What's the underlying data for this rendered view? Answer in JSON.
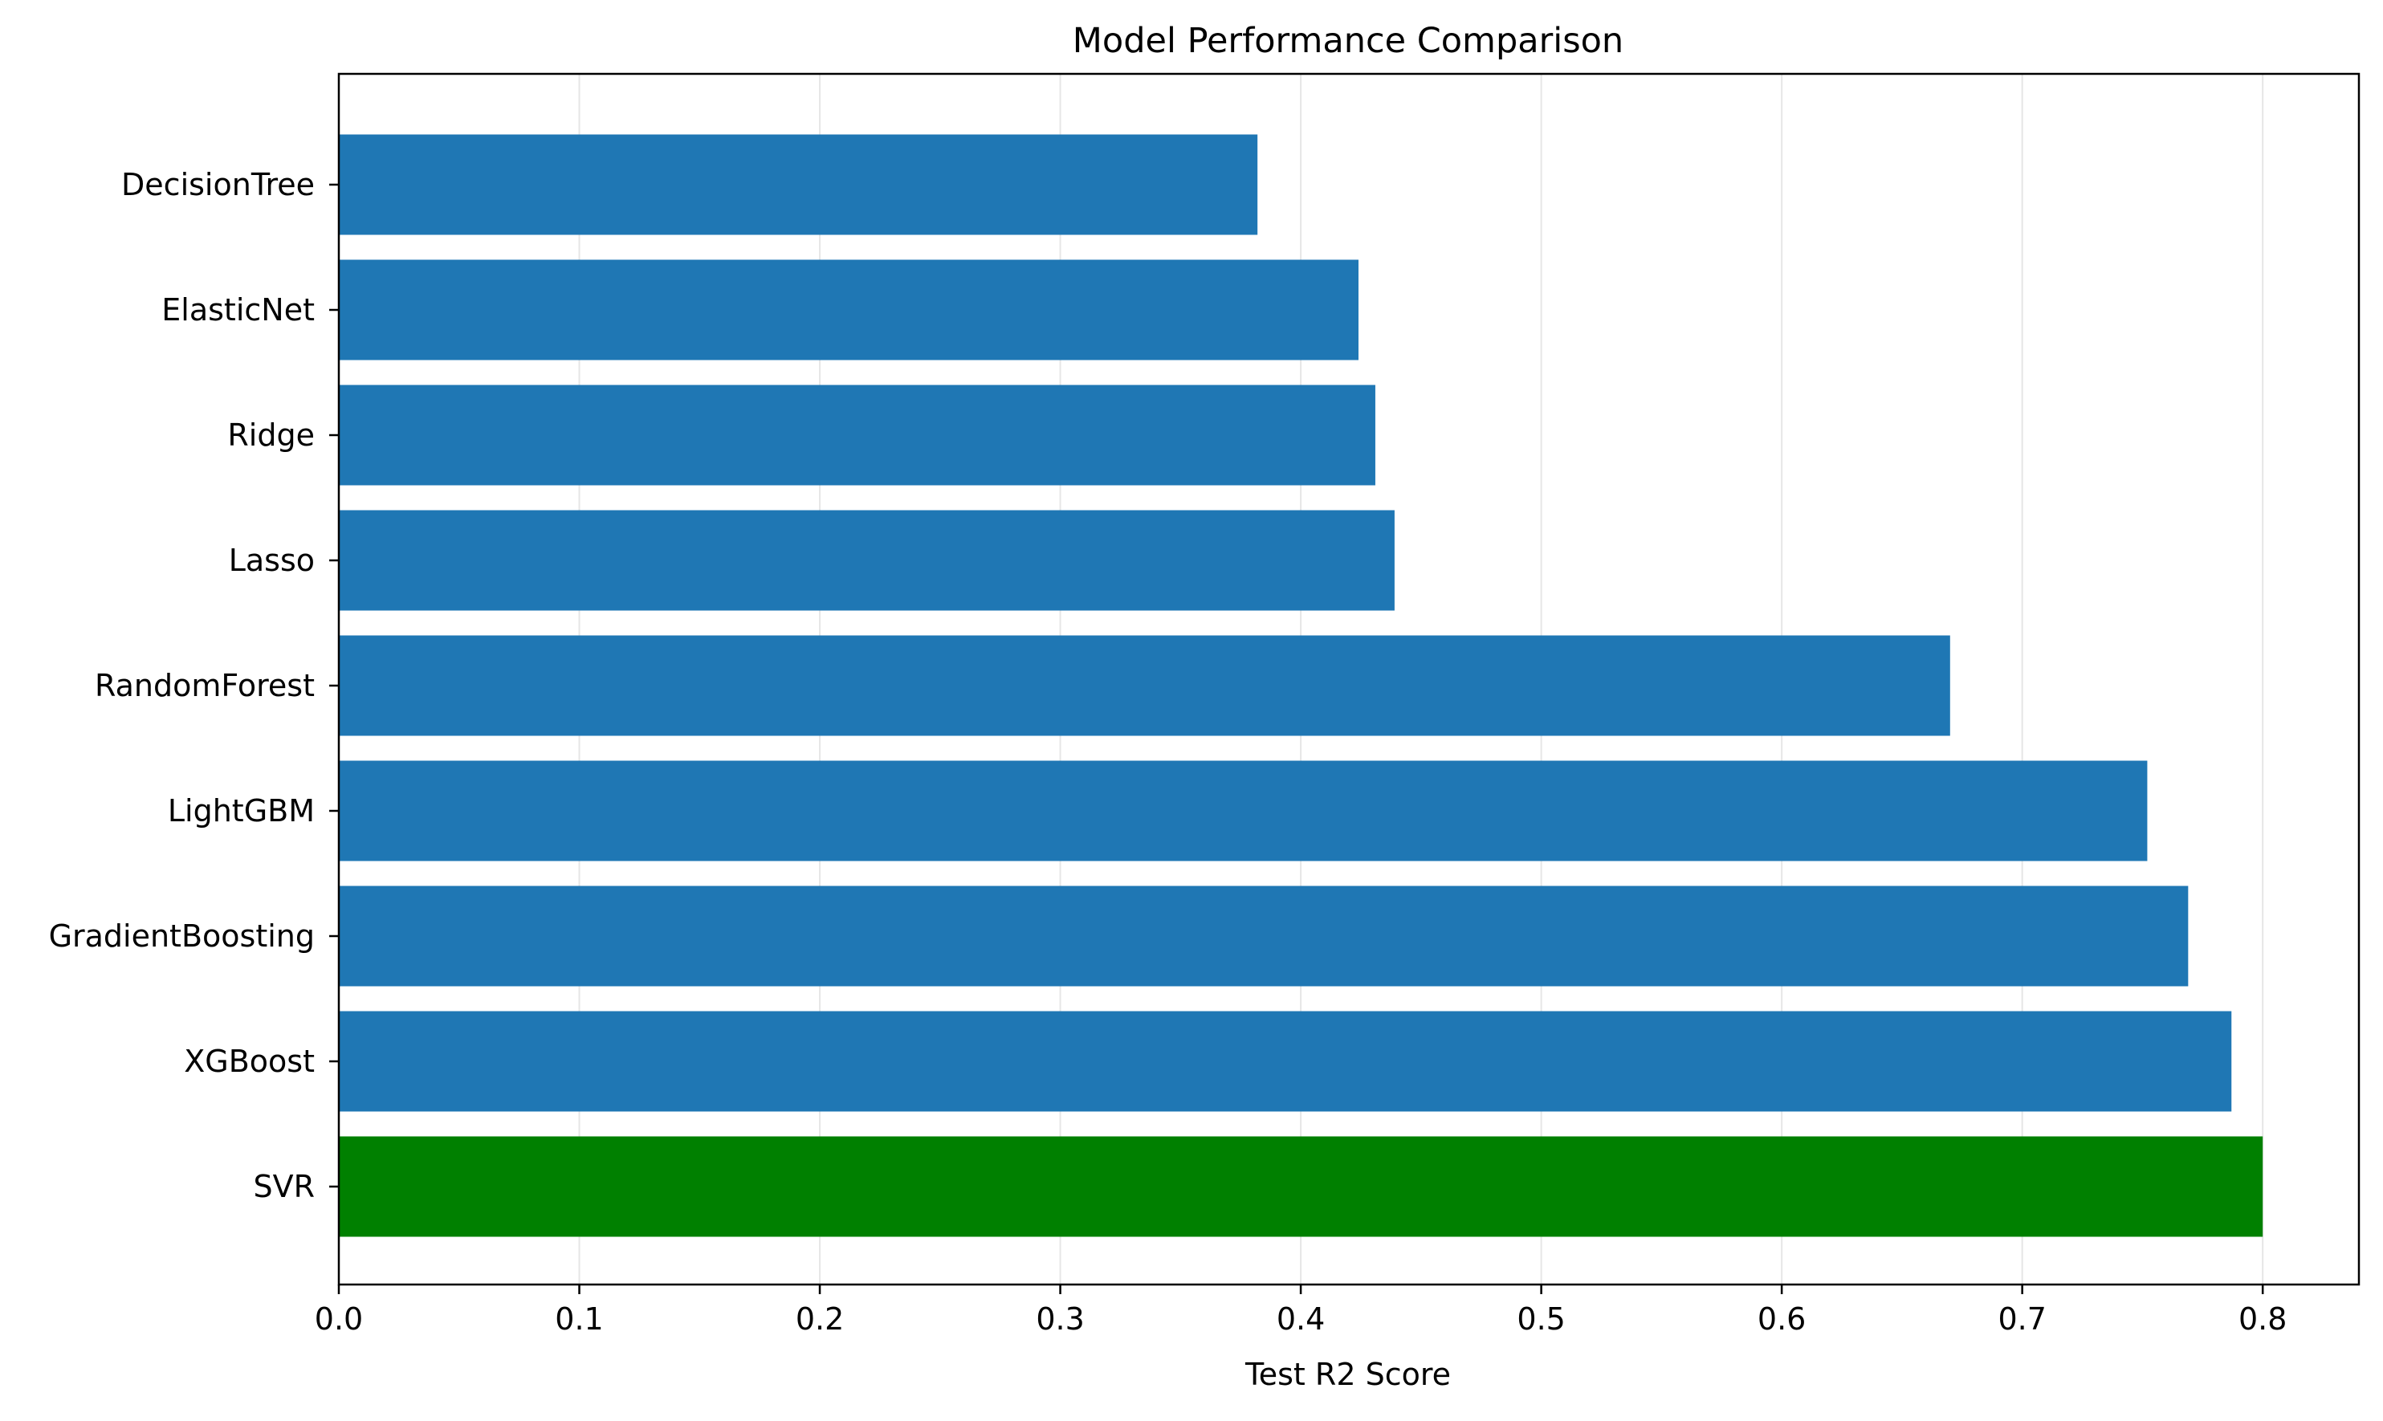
{
  "chart_data": {
    "type": "bar",
    "orientation": "horizontal",
    "title": "Model Performance Comparison",
    "xlabel": "Test R2 Score",
    "ylabel": "",
    "xlim": [
      0,
      0.84
    ],
    "xticks": [
      0.0,
      0.1,
      0.2,
      0.3,
      0.4,
      0.5,
      0.6,
      0.7,
      0.8
    ],
    "xtick_labels": [
      "0.0",
      "0.1",
      "0.2",
      "0.3",
      "0.4",
      "0.5",
      "0.6",
      "0.7",
      "0.8"
    ],
    "grid": "vertical lines on x ticks",
    "categories": [
      "SVR",
      "XGBoost",
      "GradientBoosting",
      "LightGBM",
      "RandomForest",
      "Lasso",
      "Ridge",
      "ElasticNet",
      "DecisionTree"
    ],
    "values": [
      0.8,
      0.787,
      0.769,
      0.752,
      0.67,
      0.439,
      0.431,
      0.424,
      0.382
    ],
    "colors": [
      "#008000",
      "#1f77b4",
      "#1f77b4",
      "#1f77b4",
      "#1f77b4",
      "#1f77b4",
      "#1f77b4",
      "#1f77b4",
      "#1f77b4"
    ],
    "grid_color": "#e6e6e6",
    "axis_color": "#000000"
  }
}
